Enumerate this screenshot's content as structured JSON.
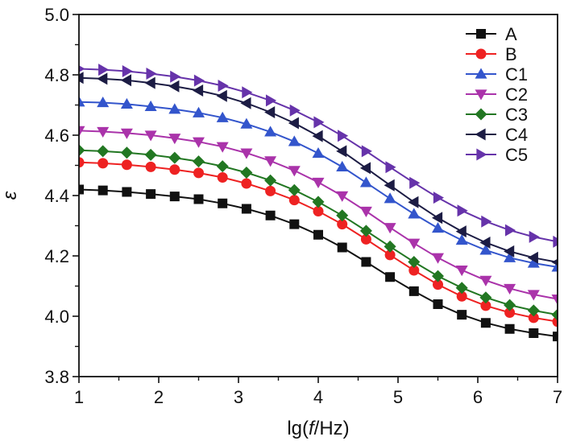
{
  "chart_data": {
    "type": "line",
    "title": "",
    "xlabel": "lg(f/Hz)",
    "xlabel_parts": {
      "prefix": "lg(",
      "italic": "f",
      "suffix": "/Hz)"
    },
    "ylabel": "ε",
    "xlim": [
      1,
      7
    ],
    "ylim": [
      3.8,
      5.0
    ],
    "xticks": [
      1,
      2,
      3,
      4,
      5,
      6,
      7
    ],
    "yticks": [
      3.8,
      4.0,
      4.2,
      4.4,
      4.6,
      4.8,
      5.0
    ],
    "xtick_labels": [
      "1",
      "2",
      "3",
      "4",
      "5",
      "6",
      "7"
    ],
    "ytick_labels": [
      "3.8",
      "4.0",
      "4.2",
      "4.4",
      "4.6",
      "4.8",
      "5.0"
    ],
    "grid": false,
    "legend_position": "top-right",
    "x": [
      1.0,
      1.3,
      1.6,
      1.9,
      2.2,
      2.5,
      2.8,
      3.1,
      3.4,
      3.7,
      4.0,
      4.3,
      4.6,
      4.9,
      5.2,
      5.5,
      5.8,
      6.1,
      6.4,
      6.7,
      7.0
    ],
    "series": [
      {
        "name": "A",
        "color": "#111111",
        "marker": "square",
        "values": [
          4.42,
          4.417,
          4.412,
          4.405,
          4.397,
          4.388,
          4.374,
          4.356,
          4.334,
          4.305,
          4.27,
          4.228,
          4.18,
          4.13,
          4.083,
          4.04,
          4.005,
          3.978,
          3.958,
          3.944,
          3.933
        ]
      },
      {
        "name": "B",
        "color": "#ee2222",
        "marker": "circle",
        "values": [
          4.51,
          4.507,
          4.502,
          4.495,
          4.486,
          4.475,
          4.46,
          4.44,
          4.415,
          4.385,
          4.348,
          4.305,
          4.255,
          4.203,
          4.152,
          4.105,
          4.066,
          4.035,
          4.012,
          3.995,
          3.982
        ]
      },
      {
        "name": "C1",
        "color": "#3355cc",
        "marker": "triangle-up",
        "values": [
          4.71,
          4.708,
          4.703,
          4.695,
          4.686,
          4.674,
          4.658,
          4.637,
          4.611,
          4.579,
          4.54,
          4.495,
          4.443,
          4.39,
          4.339,
          4.292,
          4.252,
          4.219,
          4.194,
          4.176,
          4.163
        ]
      },
      {
        "name": "C2",
        "color": "#aa33aa",
        "marker": "triangle-down",
        "values": [
          4.615,
          4.612,
          4.607,
          4.6,
          4.59,
          4.578,
          4.562,
          4.541,
          4.515,
          4.483,
          4.444,
          4.399,
          4.348,
          4.294,
          4.242,
          4.194,
          4.153,
          4.119,
          4.092,
          4.072,
          4.057
        ]
      },
      {
        "name": "C3",
        "color": "#227722",
        "marker": "diamond",
        "values": [
          4.55,
          4.547,
          4.542,
          4.535,
          4.525,
          4.513,
          4.497,
          4.476,
          4.45,
          4.418,
          4.379,
          4.334,
          4.283,
          4.231,
          4.18,
          4.133,
          4.094,
          4.062,
          4.037,
          4.019,
          4.005
        ]
      },
      {
        "name": "C4",
        "color": "#1c1c44",
        "marker": "triangle-left",
        "values": [
          4.79,
          4.787,
          4.782,
          4.773,
          4.762,
          4.748,
          4.73,
          4.706,
          4.676,
          4.64,
          4.597,
          4.547,
          4.491,
          4.434,
          4.378,
          4.326,
          4.281,
          4.244,
          4.215,
          4.194,
          4.179
        ]
      },
      {
        "name": "C5",
        "color": "#6633aa",
        "marker": "triangle-right",
        "values": [
          4.82,
          4.817,
          4.812,
          4.804,
          4.794,
          4.781,
          4.764,
          4.742,
          4.715,
          4.682,
          4.643,
          4.598,
          4.547,
          4.494,
          4.442,
          4.393,
          4.35,
          4.314,
          4.285,
          4.263,
          4.247
        ]
      }
    ]
  }
}
